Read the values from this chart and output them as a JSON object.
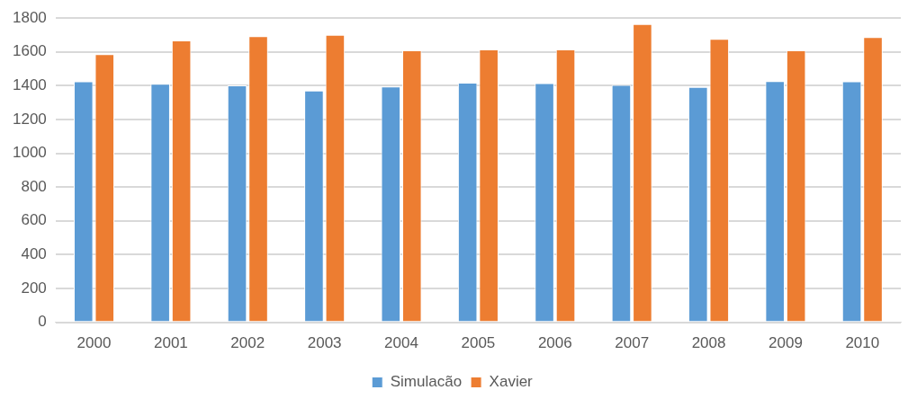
{
  "chart_data": {
    "type": "bar",
    "categories": [
      "2000",
      "2001",
      "2002",
      "2003",
      "2004",
      "2005",
      "2006",
      "2007",
      "2008",
      "2009",
      "2010"
    ],
    "series": [
      {
        "name": "Simulacão",
        "color": "#5b9bd5",
        "values": [
          1426,
          1411,
          1402,
          1372,
          1395,
          1418,
          1415,
          1405,
          1393,
          1428,
          1426
        ]
      },
      {
        "name": "Xavier",
        "color": "#ed7d31",
        "values": [
          1587,
          1668,
          1694,
          1701,
          1609,
          1615,
          1615,
          1765,
          1677,
          1609,
          1688
        ]
      }
    ],
    "ylim": [
      0,
      1800
    ],
    "yticks": [
      0,
      200,
      400,
      600,
      800,
      1000,
      1200,
      1400,
      1600,
      1800
    ],
    "grid": "y",
    "legend": "bottom"
  }
}
